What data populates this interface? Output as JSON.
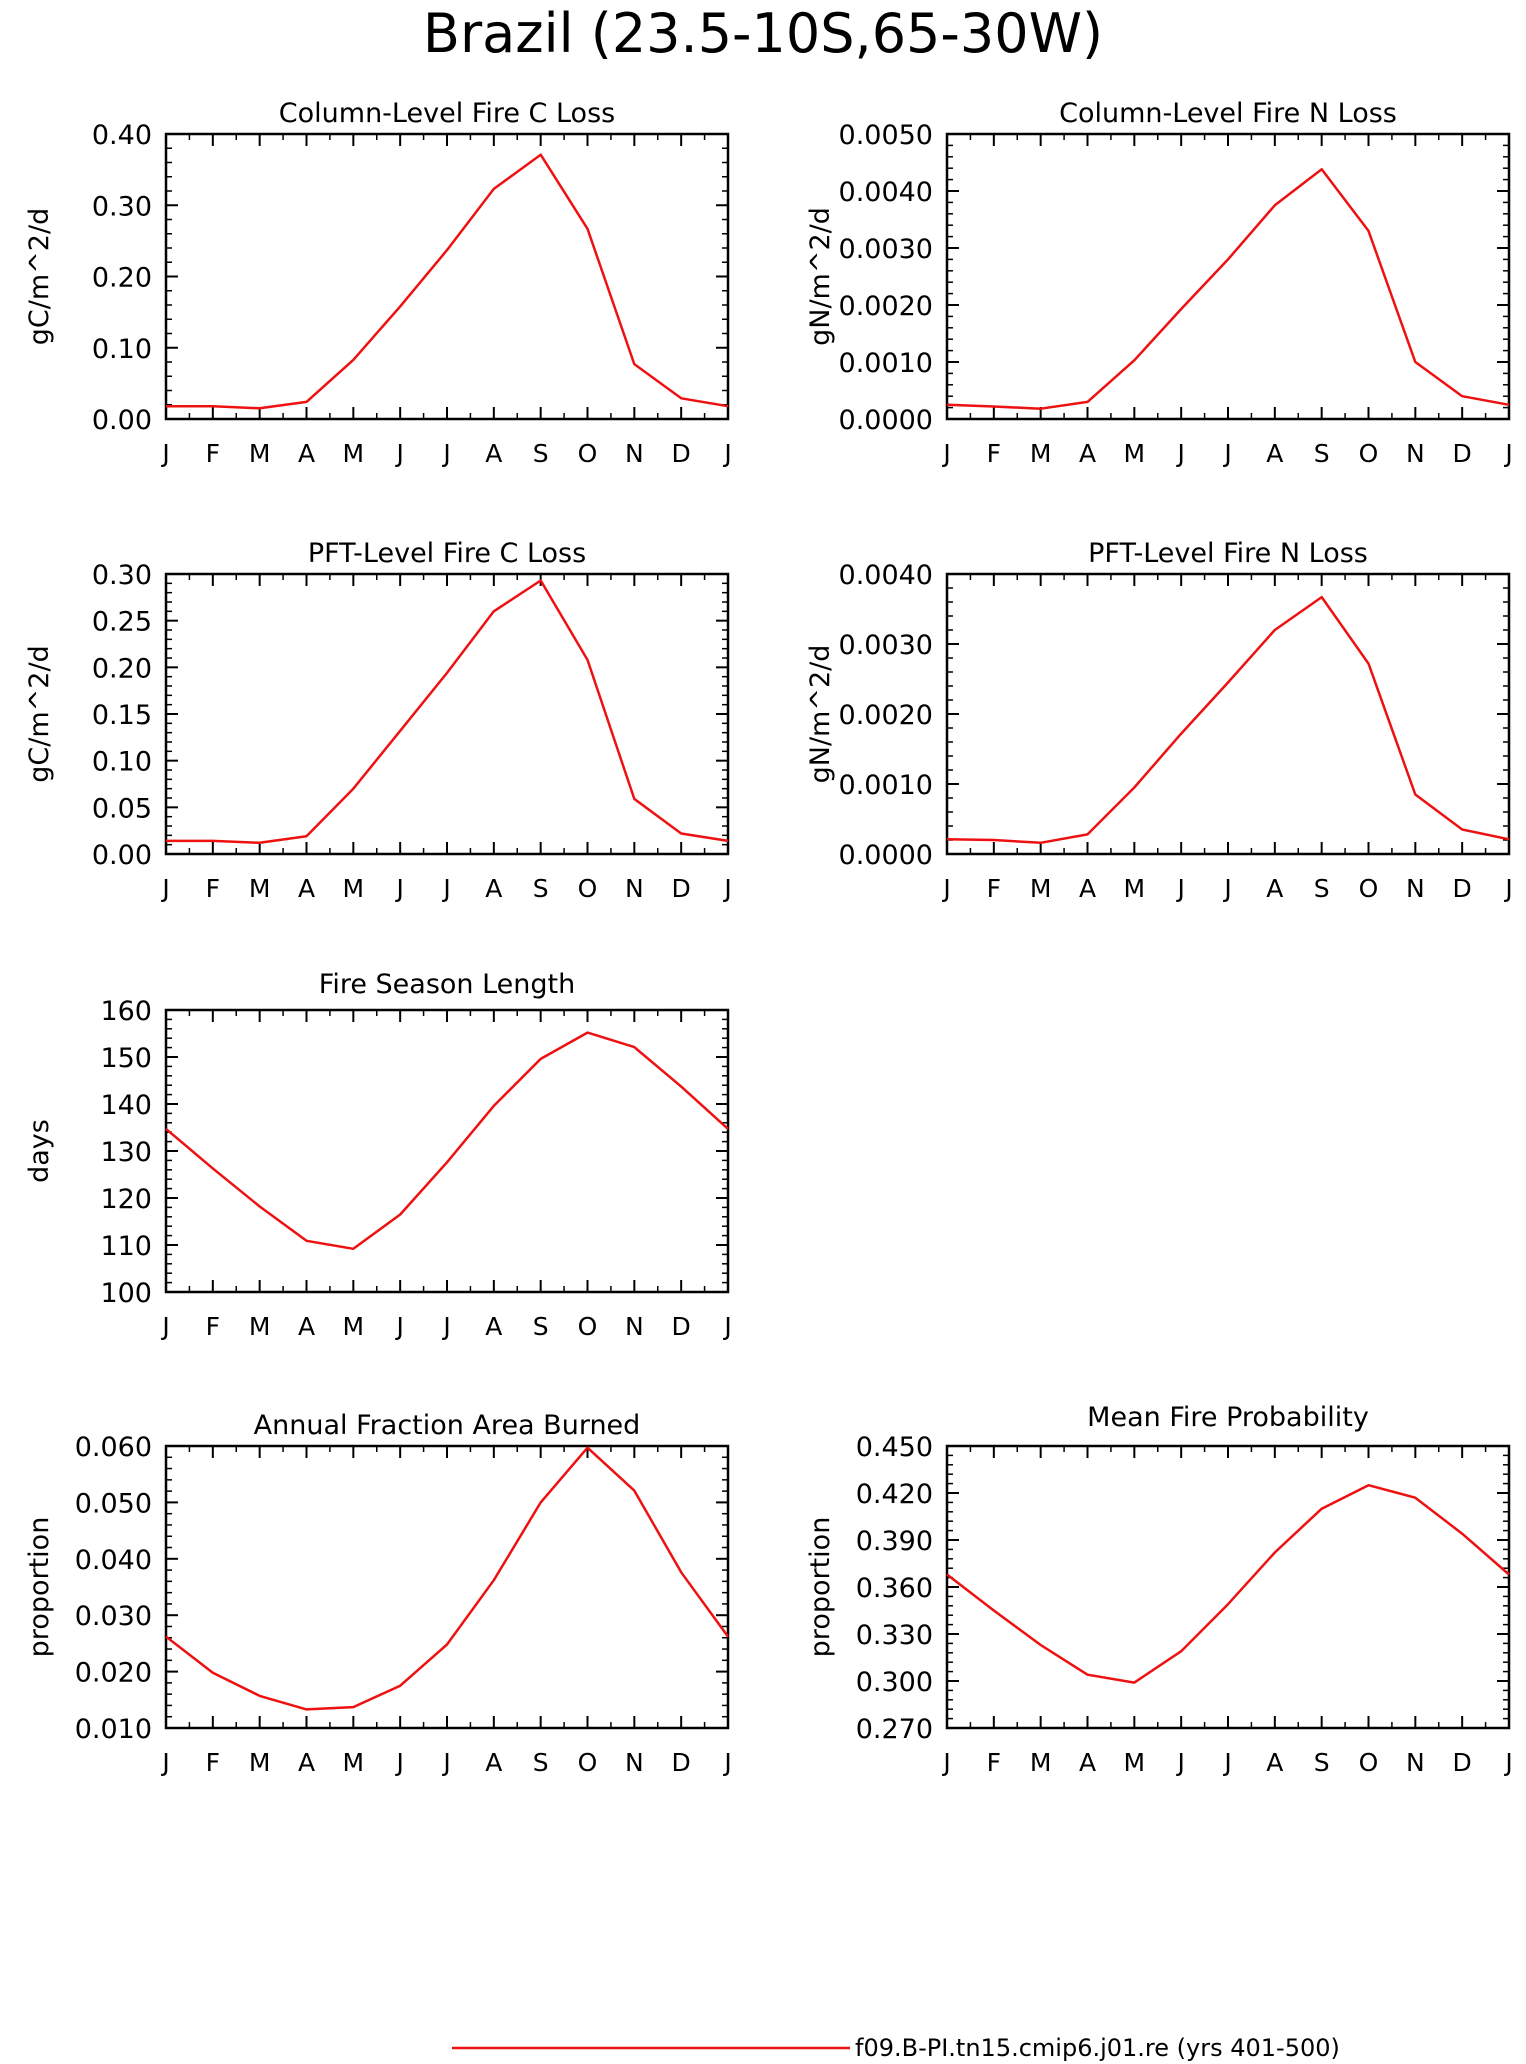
{
  "figure": {
    "title": "Brazil (23.5-10S,65-30W)",
    "legend_label": "f09.B-PI.tn15.cmip6.j01.re (yrs 401-500)",
    "line_color": "#ee1111"
  },
  "chart_data": [
    {
      "type": "line",
      "title": "Column-Level Fire C Loss",
      "ylabel": "gC/m^2/d",
      "categories": [
        "J",
        "F",
        "M",
        "A",
        "M",
        "J",
        "J",
        "A",
        "S",
        "O",
        "N",
        "D",
        "J"
      ],
      "values": [
        0.018,
        0.018,
        0.015,
        0.024,
        0.083,
        0.158,
        0.237,
        0.323,
        0.371,
        0.267,
        0.077,
        0.029,
        0.018
      ],
      "ylim": [
        0.0,
        0.4
      ],
      "yticks": [
        "0.00",
        "0.10",
        "0.20",
        "0.30",
        "0.40"
      ],
      "series": [
        {
          "name": "f09.B-PI.tn15.cmip6.j01.re (yrs 401-500)"
        }
      ]
    },
    {
      "type": "line",
      "title": "Column-Level Fire N Loss",
      "ylabel": "gN/m^2/d",
      "categories": [
        "J",
        "F",
        "M",
        "A",
        "M",
        "J",
        "J",
        "A",
        "S",
        "O",
        "N",
        "D",
        "J"
      ],
      "values": [
        0.00025,
        0.00022,
        0.00018,
        0.0003,
        0.00103,
        0.00193,
        0.0028,
        0.00375,
        0.00438,
        0.0033,
        0.001,
        0.0004,
        0.00025
      ],
      "ylim": [
        0.0,
        0.005
      ],
      "yticks": [
        "0.0000",
        "0.0010",
        "0.0020",
        "0.0030",
        "0.0040",
        "0.0050"
      ],
      "series": [
        {
          "name": "f09.B-PI.tn15.cmip6.j01.re (yrs 401-500)"
        }
      ]
    },
    {
      "type": "line",
      "title": "PFT-Level Fire C Loss",
      "ylabel": "gC/m^2/d",
      "categories": [
        "J",
        "F",
        "M",
        "A",
        "M",
        "J",
        "J",
        "A",
        "S",
        "O",
        "N",
        "D",
        "J"
      ],
      "values": [
        0.014,
        0.014,
        0.012,
        0.019,
        0.07,
        0.132,
        0.194,
        0.26,
        0.293,
        0.208,
        0.059,
        0.022,
        0.014
      ],
      "ylim": [
        0.0,
        0.3
      ],
      "yticks": [
        "0.00",
        "0.05",
        "0.10",
        "0.15",
        "0.20",
        "0.25",
        "0.30"
      ],
      "series": [
        {
          "name": "f09.B-PI.tn15.cmip6.j01.re (yrs 401-500)"
        }
      ]
    },
    {
      "type": "line",
      "title": "PFT-Level Fire N Loss",
      "ylabel": "gN/m^2/d",
      "categories": [
        "J",
        "F",
        "M",
        "A",
        "M",
        "J",
        "J",
        "A",
        "S",
        "O",
        "N",
        "D",
        "J"
      ],
      "values": [
        0.00021,
        0.0002,
        0.00016,
        0.00028,
        0.00095,
        0.00172,
        0.00245,
        0.0032,
        0.00367,
        0.00272,
        0.00085,
        0.00035,
        0.00021
      ],
      "ylim": [
        0.0,
        0.004
      ],
      "yticks": [
        "0.0000",
        "0.0010",
        "0.0020",
        "0.0030",
        "0.0040"
      ],
      "series": [
        {
          "name": "f09.B-PI.tn15.cmip6.j01.re (yrs 401-500)"
        }
      ]
    },
    {
      "type": "line",
      "title": "Fire Season Length",
      "ylabel": "days",
      "categories": [
        "J",
        "F",
        "M",
        "A",
        "M",
        "J",
        "J",
        "A",
        "S",
        "O",
        "N",
        "D",
        "J"
      ],
      "values": [
        134.7,
        126.3,
        118.2,
        110.9,
        109.2,
        116.5,
        127.6,
        139.6,
        149.6,
        155.2,
        152.1,
        143.7,
        134.7
      ],
      "ylim": [
        100,
        160
      ],
      "yticks": [
        "100",
        "110",
        "120",
        "130",
        "140",
        "150",
        "160"
      ],
      "series": [
        {
          "name": "f09.B-PI.tn15.cmip6.j01.re (yrs 401-500)"
        }
      ]
    },
    {
      "type": "line",
      "title": "Annual Fraction Area Burned",
      "ylabel": "proportion",
      "categories": [
        "J",
        "F",
        "M",
        "A",
        "M",
        "J",
        "J",
        "A",
        "S",
        "O",
        "N",
        "D",
        "J"
      ],
      "values": [
        0.0262,
        0.0198,
        0.0157,
        0.0133,
        0.0137,
        0.0175,
        0.0248,
        0.0362,
        0.05,
        0.0597,
        0.0521,
        0.0376,
        0.0262
      ],
      "ylim": [
        0.01,
        0.06
      ],
      "yticks": [
        "0.010",
        "0.020",
        "0.030",
        "0.040",
        "0.050",
        "0.060"
      ],
      "series": [
        {
          "name": "f09.B-PI.tn15.cmip6.j01.re (yrs 401-500)"
        }
      ]
    },
    {
      "type": "line",
      "title": "Mean Fire Probability",
      "ylabel": "proportion",
      "categories": [
        "J",
        "F",
        "M",
        "A",
        "M",
        "J",
        "J",
        "A",
        "S",
        "O",
        "N",
        "D",
        "J"
      ],
      "values": [
        0.368,
        0.345,
        0.323,
        0.304,
        0.299,
        0.319,
        0.349,
        0.382,
        0.41,
        0.425,
        0.417,
        0.394,
        0.368
      ],
      "ylim": [
        0.27,
        0.45
      ],
      "yticks": [
        "0.270",
        "0.300",
        "0.330",
        "0.360",
        "0.390",
        "0.420",
        "0.450"
      ],
      "series": [
        {
          "name": "f09.B-PI.tn15.cmip6.j01.re (yrs 401-500)"
        }
      ]
    }
  ]
}
